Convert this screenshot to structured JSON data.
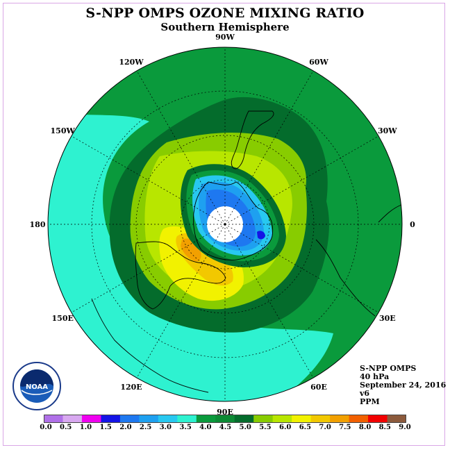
{
  "header": {
    "title": "S-NPP OMPS OZONE MIXING RATIO",
    "subtitle": "Southern Hemisphere"
  },
  "map": {
    "projection": "south polar stereographic",
    "longitude_labels": [
      {
        "text": "90W",
        "lon": -90
      },
      {
        "text": "60W",
        "lon": -60
      },
      {
        "text": "30W",
        "lon": -30
      },
      {
        "text": "0",
        "lon": 0
      },
      {
        "text": "30E",
        "lon": 30
      },
      {
        "text": "60E",
        "lon": 60
      },
      {
        "text": "90E",
        "lon": 90
      },
      {
        "text": "120E",
        "lon": 120
      },
      {
        "text": "150E",
        "lon": 150
      },
      {
        "text": "180",
        "lon": 180
      },
      {
        "text": "150W",
        "lon": -150
      },
      {
        "text": "120W",
        "lon": -120
      }
    ],
    "field_colors": {
      "3.5-4.0": "#2ef2d0",
      "4.0-4.5": "#0a9a3c",
      "4.5-5.0": "#046c2c",
      "5.0-5.5": "#88cc00",
      "5.5-6.0": "#b8e600",
      "6.0-6.5": "#f2f200",
      "6.5-7.0": "#f2c800",
      "7.0-7.5": "#f2a000",
      "1.5-2.0": "#1414e6",
      "2.0-2.5": "#1e78f0",
      "2.5-3.0": "#1ea0f0",
      "3.0-3.5": "#28c8f0",
      "no_data": "#ffffff"
    }
  },
  "info": {
    "instrument": "S-NPP OMPS",
    "level": "40 hPa",
    "date": "September 24, 2016",
    "version": "v6",
    "units": "PPM"
  },
  "colorbar": {
    "ticks": [
      "0.0",
      "0.5",
      "1.0",
      "1.5",
      "2.0",
      "2.5",
      "3.0",
      "3.5",
      "4.0",
      "4.5",
      "5.0",
      "5.5",
      "6.0",
      "6.5",
      "7.0",
      "7.5",
      "8.0",
      "8.5",
      "9.0"
    ],
    "colors": [
      "#b070e8",
      "#d8a8f0",
      "#f000f0",
      "#1414e6",
      "#1e78f0",
      "#1ea0f0",
      "#28c8f0",
      "#2ef2d0",
      "#0a9a3c",
      "#0c8a34",
      "#046c2c",
      "#88cc00",
      "#b8e600",
      "#f2f200",
      "#f2c800",
      "#f2a000",
      "#f26000",
      "#f20000",
      "#8c5a3c"
    ]
  },
  "logo": {
    "text": "NOAA",
    "icon": "noaa-logo-icon"
  }
}
